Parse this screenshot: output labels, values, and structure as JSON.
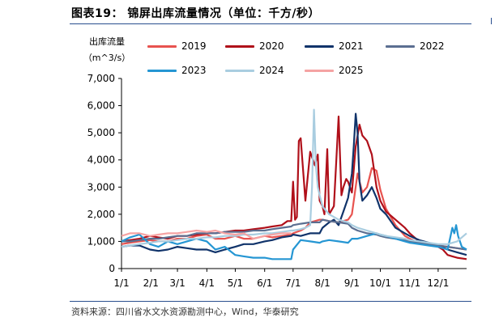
{
  "title": "图表19： 锦屏出库流量情况（单位：千方/秒）",
  "source": "资料来源：四川省水文水资源勘测中心，Wind，华泰研究",
  "chart_data": {
    "type": "line",
    "ylabel_line1": "出库流量",
    "ylabel_line2": "（m^3/s）",
    "ylim": [
      0,
      7000
    ],
    "yticks": [
      "0",
      "1,000",
      "2,000",
      "3,000",
      "4,000",
      "5,000",
      "6,000",
      "7,000"
    ],
    "ytick_values": [
      0,
      1000,
      2000,
      3000,
      4000,
      5000,
      6000,
      7000
    ],
    "xlim": [
      1,
      365
    ],
    "xticks": [
      "1/1",
      "2/1",
      "3/1",
      "4/1",
      "5/1",
      "6/1",
      "7/1",
      "8/1",
      "9/1",
      "10/1",
      "11/1",
      "12/1"
    ],
    "xtick_days": [
      1,
      32,
      60,
      91,
      121,
      152,
      182,
      213,
      244,
      274,
      305,
      335
    ],
    "grid": false,
    "legend_position": "top",
    "series": [
      {
        "name": "2019",
        "color": "#e8534f",
        "x": [
          1,
          10,
          20,
          31,
          40,
          50,
          60,
          70,
          80,
          91,
          100,
          110,
          121,
          130,
          140,
          152,
          160,
          170,
          180,
          182,
          190,
          195,
          200,
          205,
          210,
          213,
          220,
          230,
          240,
          244,
          250,
          255,
          260,
          265,
          270,
          274,
          280,
          290,
          300,
          305,
          315,
          325,
          335,
          345,
          355,
          365
        ],
        "y": [
          900,
          950,
          1000,
          1050,
          1000,
          1000,
          1100,
          1100,
          1200,
          1250,
          1100,
          1100,
          1200,
          1100,
          1100,
          1200,
          1150,
          1200,
          1250,
          1300,
          1400,
          1500,
          1700,
          1750,
          1800,
          1800,
          1750,
          1700,
          1800,
          2000,
          3500,
          2800,
          3000,
          3700,
          3600,
          2900,
          2200,
          1600,
          1200,
          1100,
          950,
          900,
          850,
          800,
          750,
          700
        ]
      },
      {
        "name": "2020",
        "color": "#b0101a",
        "x": [
          1,
          10,
          20,
          31,
          40,
          50,
          60,
          70,
          80,
          91,
          100,
          110,
          121,
          130,
          140,
          152,
          160,
          170,
          176,
          180,
          182,
          184,
          186,
          188,
          190,
          195,
          200,
          205,
          208,
          210,
          213,
          215,
          218,
          220,
          225,
          230,
          233,
          235,
          238,
          240,
          244,
          248,
          252,
          255,
          260,
          265,
          270,
          274,
          280,
          290,
          300,
          305,
          315,
          325,
          335,
          340,
          345,
          350,
          355,
          365
        ],
        "y": [
          1000,
          1050,
          1100,
          1200,
          1150,
          1100,
          1200,
          1200,
          1250,
          1300,
          1300,
          1350,
          1400,
          1400,
          1450,
          1500,
          1550,
          1600,
          1750,
          1750,
          3200,
          1800,
          1900,
          4700,
          4800,
          2500,
          4300,
          3800,
          4200,
          2500,
          2300,
          2000,
          4400,
          2000,
          2300,
          5600,
          2700,
          3000,
          3300,
          3200,
          2800,
          4500,
          5300,
          4900,
          4700,
          4200,
          3000,
          2500,
          2100,
          1800,
          1500,
          1300,
          1000,
          900,
          800,
          700,
          500,
          450,
          400,
          350
        ]
      },
      {
        "name": "2021",
        "color": "#10336a",
        "x": [
          1,
          10,
          20,
          31,
          40,
          50,
          60,
          70,
          80,
          91,
          100,
          110,
          121,
          130,
          140,
          152,
          160,
          170,
          180,
          182,
          190,
          200,
          210,
          213,
          220,
          225,
          230,
          235,
          240,
          244,
          246,
          248,
          250,
          252,
          255,
          260,
          265,
          270,
          274,
          280,
          290,
          300,
          305,
          315,
          325,
          335,
          345,
          355,
          365
        ],
        "y": [
          800,
          850,
          850,
          700,
          650,
          700,
          800,
          750,
          700,
          700,
          600,
          700,
          800,
          900,
          900,
          1000,
          1050,
          1150,
          1200,
          1250,
          1200,
          1300,
          1300,
          1500,
          1700,
          1800,
          1600,
          2100,
          2600,
          3500,
          4500,
          5700,
          5000,
          3200,
          2500,
          2700,
          3000,
          2600,
          2200,
          2000,
          1500,
          1300,
          1200,
          1050,
          950,
          850,
          700,
          600,
          500
        ]
      },
      {
        "name": "2022",
        "color": "#5b6f91",
        "x": [
          1,
          10,
          20,
          31,
          40,
          50,
          60,
          70,
          80,
          91,
          100,
          110,
          121,
          130,
          140,
          152,
          160,
          170,
          180,
          182,
          190,
          200,
          210,
          213,
          220,
          230,
          240,
          244,
          250,
          260,
          270,
          274,
          280,
          290,
          300,
          305,
          315,
          325,
          335,
          345,
          355,
          365
        ],
        "y": [
          1000,
          1000,
          1050,
          1100,
          1100,
          1150,
          1200,
          1200,
          1300,
          1300,
          1300,
          1350,
          1350,
          1350,
          1400,
          1400,
          1450,
          1500,
          1550,
          1600,
          1650,
          1700,
          1700,
          1800,
          1750,
          1700,
          1650,
          1500,
          1400,
          1300,
          1250,
          1200,
          1150,
          1100,
          1050,
          1000,
          950,
          900,
          850,
          800,
          750,
          700
        ]
      },
      {
        "name": "2023",
        "color": "#2596d3",
        "x": [
          1,
          10,
          20,
          31,
          40,
          50,
          60,
          70,
          80,
          91,
          100,
          110,
          121,
          130,
          140,
          152,
          160,
          170,
          180,
          182,
          190,
          200,
          210,
          213,
          220,
          230,
          240,
          244,
          250,
          260,
          270,
          274,
          280,
          290,
          300,
          305,
          315,
          325,
          335,
          345,
          350,
          352,
          354,
          356,
          360,
          365
        ],
        "y": [
          1000,
          1150,
          1250,
          900,
          800,
          1000,
          900,
          1000,
          1100,
          1000,
          700,
          800,
          500,
          450,
          400,
          400,
          350,
          350,
          350,
          700,
          1050,
          1000,
          950,
          1000,
          1050,
          1000,
          950,
          1100,
          1100,
          1200,
          1300,
          1250,
          1200,
          1100,
          1000,
          950,
          900,
          850,
          800,
          700,
          1500,
          1300,
          1600,
          1200,
          800,
          700
        ]
      },
      {
        "name": "2024",
        "color": "#a9cde0",
        "x": [
          1,
          10,
          20,
          31,
          40,
          50,
          60,
          70,
          80,
          91,
          100,
          110,
          121,
          130,
          140,
          152,
          160,
          170,
          180,
          182,
          190,
          195,
          200,
          202,
          204,
          206,
          208,
          210,
          213,
          215,
          220,
          225,
          230,
          240,
          244,
          250,
          260,
          270,
          274,
          280,
          290,
          300,
          305,
          315,
          325,
          335,
          345,
          355,
          365
        ],
        "y": [
          800,
          850,
          900,
          950,
          1000,
          1000,
          1050,
          1100,
          1100,
          1150,
          1150,
          1200,
          1200,
          1250,
          1250,
          1300,
          1300,
          1350,
          1400,
          1400,
          1450,
          1500,
          1600,
          3000,
          5850,
          3800,
          3000,
          2700,
          2300,
          2200,
          2000,
          1900,
          1800,
          1700,
          1600,
          1500,
          1400,
          1300,
          1250,
          1200,
          1150,
          1100,
          1050,
          1000,
          950,
          900,
          900,
          1000,
          1300
        ]
      },
      {
        "name": "2025",
        "color": "#f5a3a3",
        "x": [
          1,
          10,
          20,
          31,
          40,
          50,
          60,
          70,
          80,
          91,
          100,
          110,
          121,
          130,
          140,
          152,
          160,
          170,
          180
        ],
        "y": [
          1200,
          1300,
          1300,
          1200,
          1250,
          1300,
          1300,
          1350,
          1400,
          1350,
          1400,
          1300,
          1250,
          1300,
          1100,
          1200,
          1250,
          1300,
          1300
        ]
      }
    ]
  }
}
